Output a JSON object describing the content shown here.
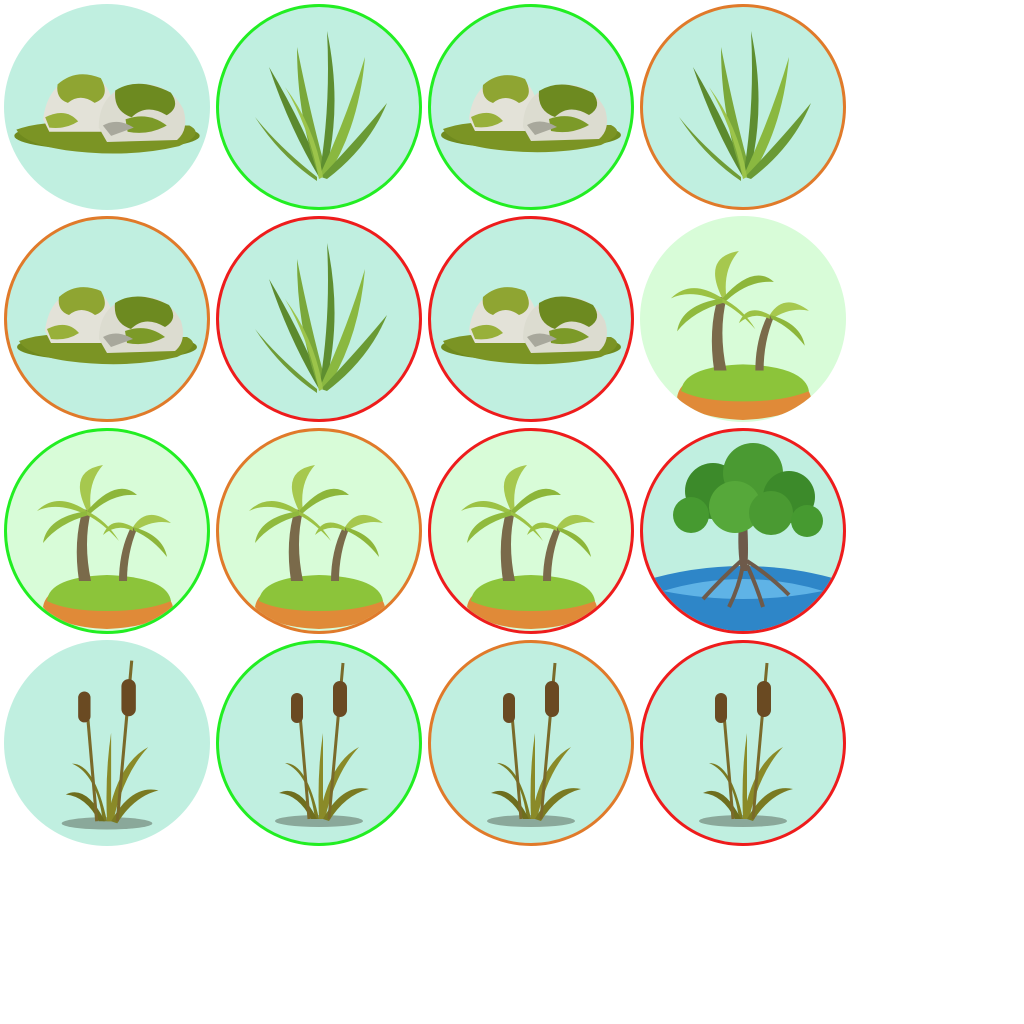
{
  "board": {
    "columns": 4,
    "rows": 4,
    "tiles": [
      {
        "icon": "mossy-rocks-icon",
        "bg": "#c0efe0",
        "ring": "none"
      },
      {
        "icon": "seaweed-icon",
        "bg": "#c0efe0",
        "ring": "green"
      },
      {
        "icon": "mossy-rocks-icon",
        "bg": "#c0efe0",
        "ring": "green"
      },
      {
        "icon": "seaweed-icon",
        "bg": "#c0efe0",
        "ring": "orange"
      },
      {
        "icon": "mossy-rocks-icon",
        "bg": "#c0efe0",
        "ring": "orange"
      },
      {
        "icon": "seaweed-icon",
        "bg": "#c0efe0",
        "ring": "red"
      },
      {
        "icon": "mossy-rocks-icon",
        "bg": "#c0efe0",
        "ring": "red"
      },
      {
        "icon": "palm-island-icon",
        "bg": "#d8fcd8",
        "ring": "none"
      },
      {
        "icon": "palm-island-icon",
        "bg": "#d8fcd8",
        "ring": "green"
      },
      {
        "icon": "palm-island-icon",
        "bg": "#d8fcd8",
        "ring": "orange"
      },
      {
        "icon": "palm-island-icon",
        "bg": "#d8fcd8",
        "ring": "red"
      },
      {
        "icon": "mangrove-tree-icon",
        "bg": "#c0efe0",
        "ring": "red"
      },
      {
        "icon": "cattail-icon",
        "bg": "#c0efe0",
        "ring": "none"
      },
      {
        "icon": "cattail-icon",
        "bg": "#c0efe0",
        "ring": "green"
      },
      {
        "icon": "cattail-icon",
        "bg": "#c0efe0",
        "ring": "orange"
      },
      {
        "icon": "cattail-icon",
        "bg": "#c0efe0",
        "ring": "red"
      }
    ]
  },
  "ring_colors": {
    "green": "#22ee22",
    "orange": "#e07a2a",
    "red": "#ee1c1c",
    "none": "transparent"
  }
}
